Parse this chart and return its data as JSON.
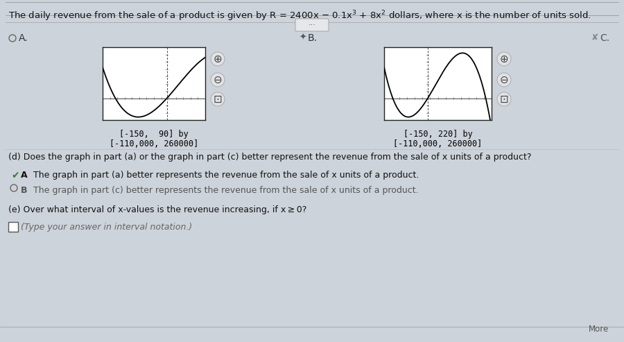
{
  "background_color": "#cdd3da",
  "graph_bg": "#ffffff",
  "curve_color": "#000000",
  "graph_A_xrange": [
    -150,
    90
  ],
  "graph_A_yrange": [
    -110000,
    260000
  ],
  "graph_B_xrange": [
    -150,
    220
  ],
  "graph_B_yrange": [
    -110000,
    260000
  ],
  "graph_A_line1": "[-150,  90] by",
  "graph_A_line2": "[-110,000, 260000]",
  "graph_B_line1": "[-150, 220] by",
  "graph_B_line2": "[-110,000, 260000]",
  "text_d": "(d) Does the graph in part (a) or the graph in part (c) better represent the revenue from the sale of x units of a product?",
  "text_optA": "The graph in part (a) better represents the revenue from the sale of x units of a product.",
  "text_optB": "The graph in part (c) better represents the revenue from the sale of x units of a product.",
  "text_e": "(e) Over what interval of x-values is the revenue increasing, if x ≥ 0?",
  "text_type": "(Type your answer in interval notation.)"
}
